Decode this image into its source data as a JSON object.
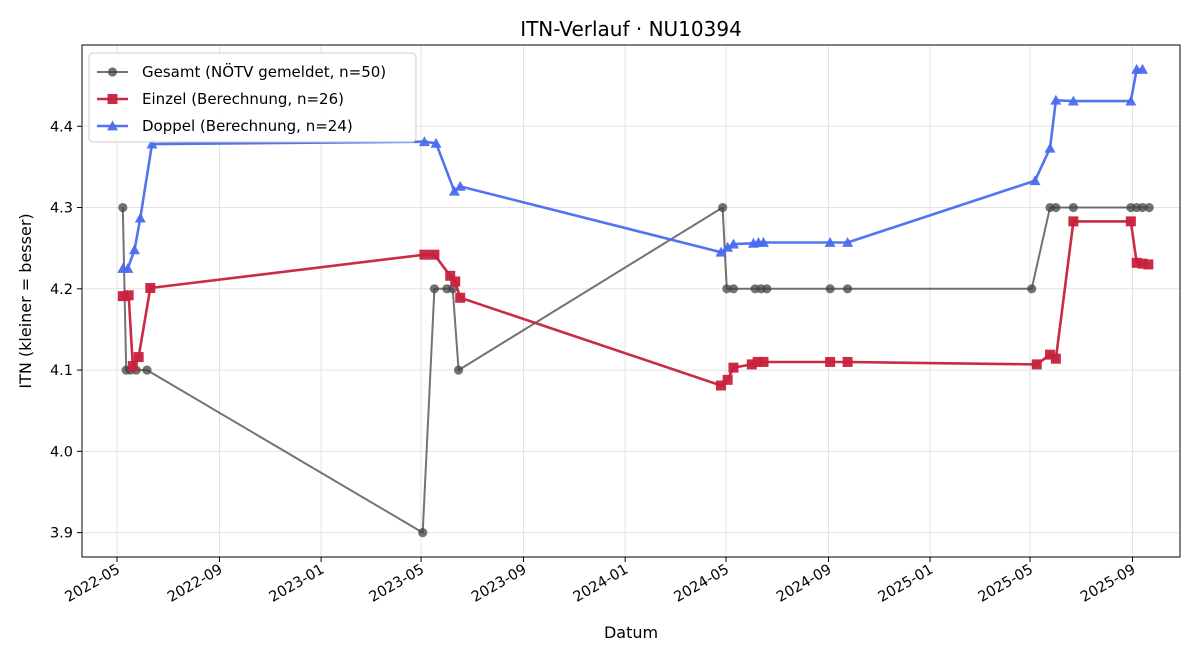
{
  "chart_data": {
    "type": "line",
    "title": "ITN-Verlauf · NU10394",
    "xlabel": "Datum",
    "ylabel": "ITN  (kleiner = besser)",
    "x_type": "date",
    "xlim": [
      "2022-03-20",
      "2025-10-28"
    ],
    "ylim": [
      3.87,
      4.5
    ],
    "x_ticks": [
      "2022-05-01",
      "2022-09-01",
      "2023-01-01",
      "2023-05-01",
      "2023-09-01",
      "2024-01-01",
      "2024-05-01",
      "2024-09-01",
      "2025-01-01",
      "2025-05-01",
      "2025-09-01"
    ],
    "x_tick_labels": [
      "2022-05",
      "2022-09",
      "2023-01",
      "2023-05",
      "2023-09",
      "2024-01",
      "2024-05",
      "2024-09",
      "2025-01",
      "2025-05",
      "2025-09"
    ],
    "y_ticks": [
      3.9,
      4.0,
      4.1,
      4.2,
      4.3,
      4.4
    ],
    "y_tick_labels": [
      "3.9",
      "4.0",
      "4.1",
      "4.2",
      "4.3",
      "4.4"
    ],
    "grid": true,
    "legend_position": "top-left",
    "series": [
      {
        "name": "Gesamt (NÖTV gemeldet, n=50)",
        "color": "#444444",
        "marker": "circle",
        "points": [
          {
            "x": "2022-05-08",
            "y": 4.3
          },
          {
            "x": "2022-05-12",
            "y": 4.1
          },
          {
            "x": "2022-05-17",
            "y": 4.1
          },
          {
            "x": "2022-05-24",
            "y": 4.1
          },
          {
            "x": "2022-06-06",
            "y": 4.1
          },
          {
            "x": "2023-05-03",
            "y": 3.9
          },
          {
            "x": "2023-05-17",
            "y": 4.2
          },
          {
            "x": "2023-06-01",
            "y": 4.2
          },
          {
            "x": "2023-06-08",
            "y": 4.2
          },
          {
            "x": "2023-06-15",
            "y": 4.1
          },
          {
            "x": "2024-04-27",
            "y": 4.3
          },
          {
            "x": "2024-05-02",
            "y": 4.2
          },
          {
            "x": "2024-05-10",
            "y": 4.2
          },
          {
            "x": "2024-06-05",
            "y": 4.2
          },
          {
            "x": "2024-06-12",
            "y": 4.2
          },
          {
            "x": "2024-06-19",
            "y": 4.2
          },
          {
            "x": "2024-09-03",
            "y": 4.2
          },
          {
            "x": "2024-09-24",
            "y": 4.2
          },
          {
            "x": "2025-05-03",
            "y": 4.2
          },
          {
            "x": "2025-05-25",
            "y": 4.3
          },
          {
            "x": "2025-06-01",
            "y": 4.3
          },
          {
            "x": "2025-06-22",
            "y": 4.3
          },
          {
            "x": "2025-08-30",
            "y": 4.3
          },
          {
            "x": "2025-09-06",
            "y": 4.3
          },
          {
            "x": "2025-09-13",
            "y": 4.3
          },
          {
            "x": "2025-09-21",
            "y": 4.3
          }
        ]
      },
      {
        "name": "Einzel (Berechnung, n=26)",
        "color": "#c8203c",
        "marker": "square",
        "points": [
          {
            "x": "2022-05-08",
            "y": 4.191
          },
          {
            "x": "2022-05-15",
            "y": 4.192
          },
          {
            "x": "2022-05-20",
            "y": 4.105
          },
          {
            "x": "2022-05-27",
            "y": 4.116
          },
          {
            "x": "2022-06-10",
            "y": 4.201
          },
          {
            "x": "2023-05-05",
            "y": 4.242
          },
          {
            "x": "2023-05-17",
            "y": 4.242
          },
          {
            "x": "2023-06-05",
            "y": 4.216
          },
          {
            "x": "2023-06-11",
            "y": 4.209
          },
          {
            "x": "2023-06-17",
            "y": 4.189
          },
          {
            "x": "2024-04-25",
            "y": 4.081
          },
          {
            "x": "2024-05-03",
            "y": 4.088
          },
          {
            "x": "2024-05-10",
            "y": 4.103
          },
          {
            "x": "2024-06-01",
            "y": 4.107
          },
          {
            "x": "2024-06-08",
            "y": 4.11
          },
          {
            "x": "2024-06-15",
            "y": 4.11
          },
          {
            "x": "2024-09-03",
            "y": 4.11
          },
          {
            "x": "2024-09-24",
            "y": 4.11
          },
          {
            "x": "2025-05-09",
            "y": 4.107
          },
          {
            "x": "2025-05-25",
            "y": 4.119
          },
          {
            "x": "2025-06-01",
            "y": 4.114
          },
          {
            "x": "2025-06-22",
            "y": 4.283
          },
          {
            "x": "2025-08-30",
            "y": 4.283
          },
          {
            "x": "2025-09-06",
            "y": 4.232
          },
          {
            "x": "2025-09-13",
            "y": 4.231
          },
          {
            "x": "2025-09-20",
            "y": 4.23
          }
        ]
      },
      {
        "name": "Doppel (Berechnung, n=24)",
        "color": "#4a6cf0",
        "marker": "triangle",
        "points": [
          {
            "x": "2022-05-08",
            "y": 4.225
          },
          {
            "x": "2022-05-14",
            "y": 4.225
          },
          {
            "x": "2022-05-22",
            "y": 4.248
          },
          {
            "x": "2022-05-29",
            "y": 4.287
          },
          {
            "x": "2022-06-12",
            "y": 4.378
          },
          {
            "x": "2023-05-05",
            "y": 4.381
          },
          {
            "x": "2023-05-19",
            "y": 4.379
          },
          {
            "x": "2023-06-10",
            "y": 4.32
          },
          {
            "x": "2023-06-17",
            "y": 4.326
          },
          {
            "x": "2024-04-25",
            "y": 4.245
          },
          {
            "x": "2024-05-03",
            "y": 4.251
          },
          {
            "x": "2024-05-10",
            "y": 4.255
          },
          {
            "x": "2024-06-03",
            "y": 4.256
          },
          {
            "x": "2024-06-09",
            "y": 4.257
          },
          {
            "x": "2024-06-15",
            "y": 4.257
          },
          {
            "x": "2024-09-03",
            "y": 4.257
          },
          {
            "x": "2024-09-24",
            "y": 4.257
          },
          {
            "x": "2025-05-07",
            "y": 4.333
          },
          {
            "x": "2025-05-25",
            "y": 4.373
          },
          {
            "x": "2025-06-01",
            "y": 4.432
          },
          {
            "x": "2025-06-22",
            "y": 4.431
          },
          {
            "x": "2025-08-30",
            "y": 4.431
          },
          {
            "x": "2025-09-06",
            "y": 4.47
          },
          {
            "x": "2025-09-13",
            "y": 4.47
          }
        ]
      }
    ]
  }
}
